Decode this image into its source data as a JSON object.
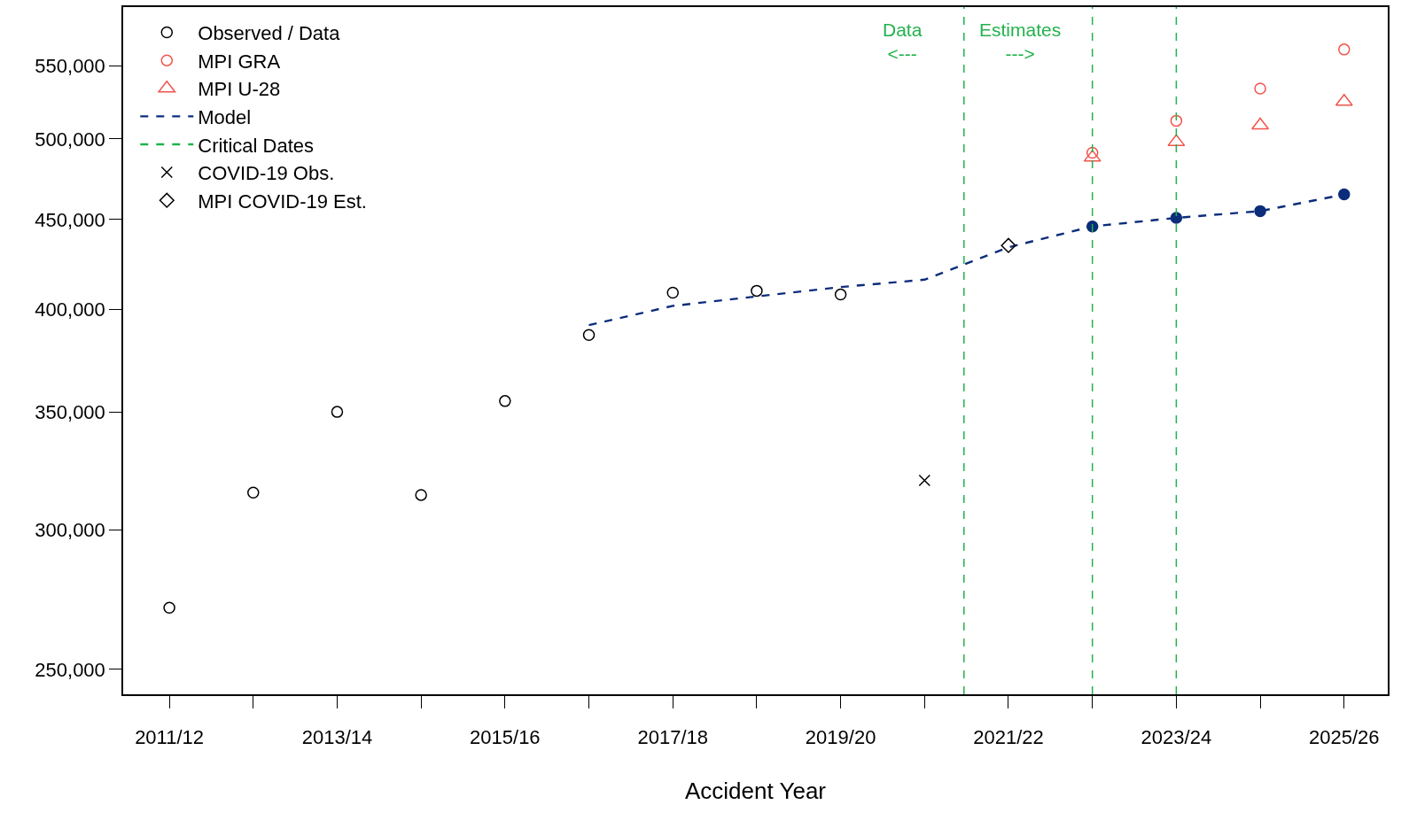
{
  "chart_data": {
    "type": "scatter",
    "xlabel": "Accident Year",
    "log": "y",
    "legend": "top left",
    "categories": [
      "2011/12",
      null,
      "2013/14",
      null,
      "2015/16",
      null,
      "2017/18",
      null,
      "2019/20",
      null,
      "2021/22",
      null,
      "2023/24",
      null,
      "2025/26"
    ],
    "ylim": [
      242000,
      594000
    ],
    "yticks": [
      {
        "value": 250000,
        "label": "250,000"
      },
      {
        "value": 300000,
        "label": "300,000"
      },
      {
        "value": 350000,
        "label": "350,000"
      },
      {
        "value": 400000,
        "label": "400,000"
      },
      {
        "value": 450000,
        "label": "450,000"
      },
      {
        "value": 500000,
        "label": "500,000"
      },
      {
        "value": 550000,
        "label": "550,000"
      }
    ],
    "series": [
      {
        "name": "Observed / Data",
        "marker": "circle",
        "color": "#000000",
        "values": [
          271000,
          315000,
          350000,
          314000,
          355000,
          387000,
          409000,
          410000,
          408000,
          null,
          null,
          null,
          null,
          null,
          null
        ]
      },
      {
        "name": "MPI GRA",
        "marker": "circle",
        "color": "#f2544c",
        "values": [
          null,
          null,
          null,
          null,
          null,
          null,
          null,
          null,
          null,
          null,
          null,
          491000,
          512000,
          534000,
          562000
        ]
      },
      {
        "name": "MPI U-28",
        "marker": "triangle",
        "color": "#f2544c",
        "values": [
          null,
          null,
          null,
          null,
          null,
          null,
          null,
          null,
          null,
          null,
          null,
          488000,
          498000,
          509000,
          525000
        ]
      },
      {
        "name": "Model",
        "type": "line",
        "line_style": "dashed",
        "marker": "none",
        "color": "#0b2d7a",
        "values": [
          null,
          null,
          null,
          null,
          null,
          392000,
          402000,
          407000,
          412000,
          416000,
          434000,
          446000,
          451000,
          455000,
          465000
        ]
      },
      {
        "marker": "circle",
        "color": "#0b2d7a",
        "values": [
          null,
          null,
          null,
          null,
          null,
          null,
          null,
          null,
          null,
          null,
          null,
          446000,
          451000,
          455000,
          465000
        ]
      },
      {
        "name": "Critical Dates",
        "type": "line",
        "line_style": "dashed",
        "marker": "none",
        "color": "#22b24c",
        "values": [
          null,
          null,
          null,
          null,
          null,
          null,
          null,
          null,
          null,
          null,
          null,
          null,
          null,
          null,
          null
        ]
      },
      {
        "name": "COVID-19 Obs.",
        "marker": "cross",
        "color": "#000000",
        "values": [
          null,
          null,
          null,
          null,
          null,
          null,
          null,
          null,
          null,
          320000,
          null,
          null,
          null,
          null,
          null
        ]
      },
      {
        "name": "MPI COVID-19 Est.",
        "marker": "diamond",
        "color": "#000000",
        "values": [
          null,
          null,
          null,
          null,
          null,
          null,
          null,
          null,
          null,
          null,
          435000,
          null,
          null,
          null,
          null
        ]
      }
    ],
    "annotations": [
      "Data\n<---",
      "Estimates\n--->"
    ]
  }
}
